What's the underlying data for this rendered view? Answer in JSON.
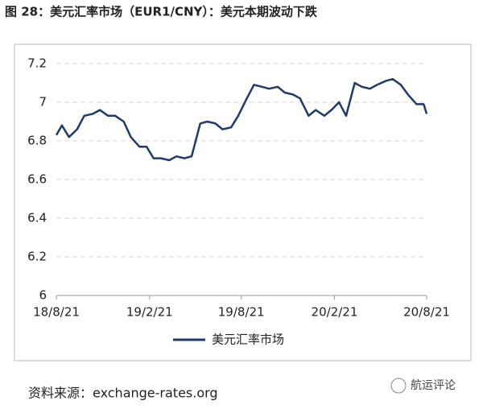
{
  "chart_data": {
    "type": "line",
    "title": "图 28：美元汇率市场（EUR1/CNY）：美元本期波动下跌",
    "x": [
      "2018-08-21",
      "2018-09-01",
      "2018-09-15",
      "2018-10-01",
      "2018-10-15",
      "2018-11-01",
      "2018-11-15",
      "2018-12-01",
      "2018-12-15",
      "2019-01-01",
      "2019-01-15",
      "2019-02-01",
      "2019-02-15",
      "2019-03-01",
      "2019-03-15",
      "2019-04-01",
      "2019-04-15",
      "2019-05-01",
      "2019-05-15",
      "2019-06-01",
      "2019-06-15",
      "2019-07-01",
      "2019-07-15",
      "2019-08-01",
      "2019-08-15",
      "2019-09-01",
      "2019-09-15",
      "2019-10-01",
      "2019-10-15",
      "2019-11-01",
      "2019-11-15",
      "2019-12-01",
      "2019-12-15",
      "2020-01-01",
      "2020-01-15",
      "2020-02-01",
      "2020-02-15",
      "2020-03-01",
      "2020-03-15",
      "2020-04-01",
      "2020-04-15",
      "2020-05-01",
      "2020-05-15",
      "2020-06-01",
      "2020-06-15",
      "2020-07-01",
      "2020-07-15",
      "2020-08-01",
      "2020-08-15",
      "2020-08-21"
    ],
    "series": [
      {
        "name": "美元汇率市场",
        "color": "#1f3a6e",
        "values": [
          6.83,
          6.88,
          6.82,
          6.86,
          6.93,
          6.94,
          6.96,
          6.93,
          6.93,
          6.9,
          6.82,
          6.77,
          6.77,
          6.71,
          6.71,
          6.7,
          6.72,
          6.71,
          6.72,
          6.89,
          6.9,
          6.89,
          6.86,
          6.87,
          6.93,
          7.02,
          7.09,
          7.08,
          7.07,
          7.08,
          7.05,
          7.04,
          7.02,
          6.93,
          6.96,
          6.93,
          6.96,
          7.0,
          6.93,
          7.1,
          7.08,
          7.07,
          7.09,
          7.11,
          7.12,
          7.09,
          7.04,
          6.99,
          6.99,
          6.94
        ]
      }
    ],
    "xlim": [
      "2018-08-21",
      "2020-08-21"
    ],
    "xticks": [
      {
        "value": "2018-08-21",
        "label": "18/8/21"
      },
      {
        "value": "2019-02-21",
        "label": "19/2/21"
      },
      {
        "value": "2019-08-21",
        "label": "19/8/21"
      },
      {
        "value": "2020-02-21",
        "label": "20/2/21"
      },
      {
        "value": "2020-08-21",
        "label": "20/8/21"
      }
    ],
    "ylim": [
      6,
      7.2
    ],
    "yticks": [
      6,
      6.2,
      6.4,
      6.6,
      6.8,
      7,
      7.2
    ],
    "grid": true,
    "legend": "bottom",
    "source": "资料来源：exchange-rates.org",
    "watermark": "航运评论"
  }
}
